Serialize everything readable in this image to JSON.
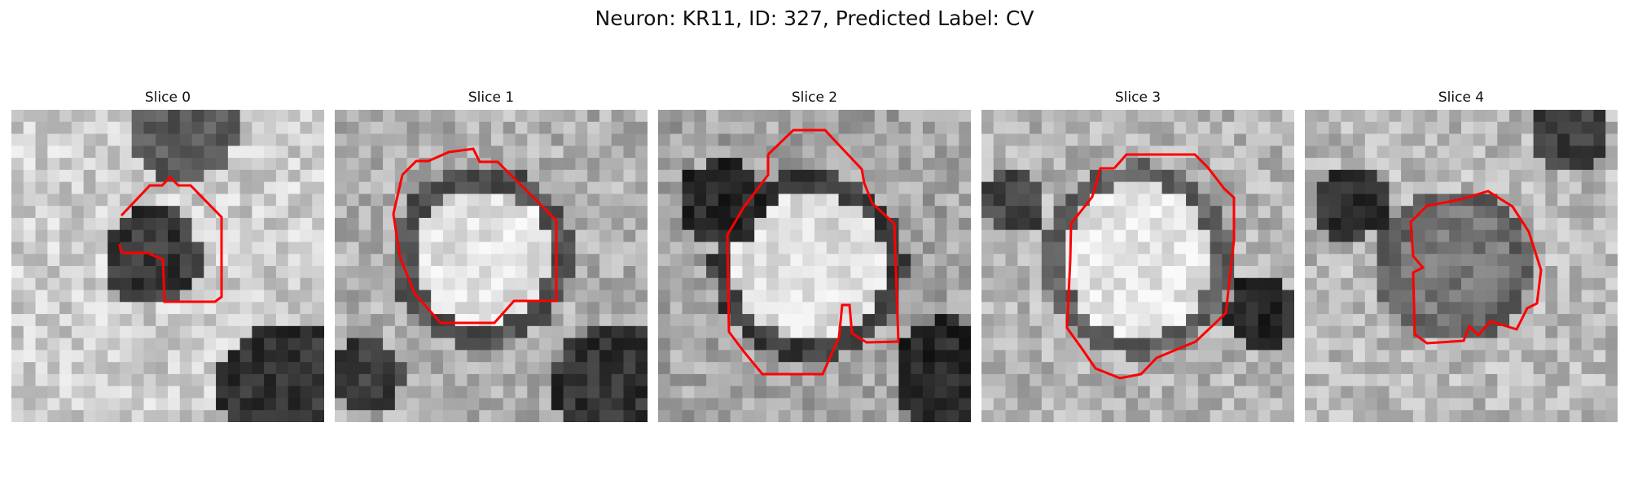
{
  "figure": {
    "title": "Neuron: KR11, ID: 327, Predicted Label: CV"
  },
  "panels": [
    {
      "title": "Slice 0",
      "contour_color": "#ff0000"
    },
    {
      "title": "Slice 1",
      "contour_color": "#ff0000"
    },
    {
      "title": "Slice 2",
      "contour_color": "#ff0000"
    },
    {
      "title": "Slice 3",
      "contour_color": "#ff0000"
    },
    {
      "title": "Slice 4",
      "contour_color": "#ff0000"
    }
  ]
}
